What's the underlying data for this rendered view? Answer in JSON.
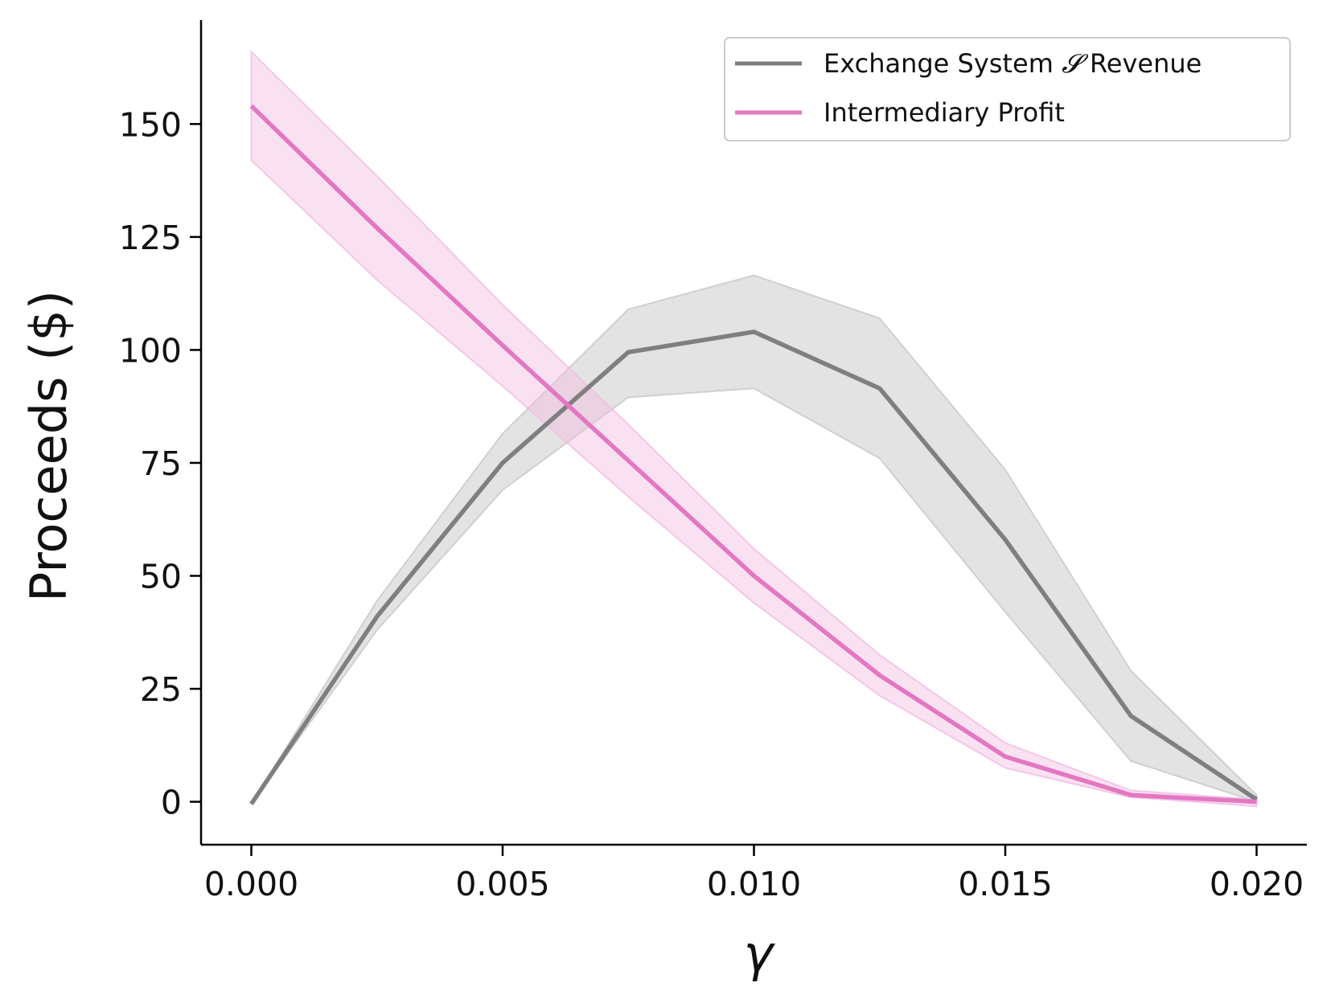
{
  "chart_data": {
    "type": "line",
    "xlabel": "γ",
    "ylabel": "Proceeds ($)",
    "xlim": [
      -0.001,
      0.021
    ],
    "ylim": [
      -9.5,
      173
    ],
    "x_ticks": [
      0.0,
      0.005,
      0.01,
      0.015,
      0.02
    ],
    "x_tick_labels": [
      "0.000",
      "0.005",
      "0.010",
      "0.015",
      "0.020"
    ],
    "y_ticks": [
      0,
      25,
      50,
      75,
      100,
      125,
      150
    ],
    "y_tick_labels": [
      "0",
      "25",
      "50",
      "75",
      "100",
      "125",
      "150"
    ],
    "x": [
      0.0,
      0.0025,
      0.005,
      0.0075,
      0.01,
      0.0125,
      0.015,
      0.0175,
      0.02
    ],
    "series": [
      {
        "name": "Exchange System 𝓢 Revenue",
        "color": "#7f7f7f",
        "band_color": "#c8c8c8",
        "values": [
          -0.5,
          41,
          75,
          99.5,
          104,
          91.5,
          58,
          19,
          0.5
        ],
        "lower": [
          -0.5,
          38,
          69,
          89.5,
          91.5,
          76,
          42,
          9,
          0
        ],
        "upper": [
          -0.5,
          44.5,
          81.5,
          109,
          116.5,
          107,
          73.5,
          29,
          1.5
        ]
      },
      {
        "name": "Intermediary Profit",
        "color": "#e377c2",
        "band_color": "#f1bde3",
        "values": [
          154,
          127,
          101,
          75.5,
          50,
          28,
          10,
          1.5,
          0
        ],
        "lower": [
          142,
          115.5,
          92,
          67.5,
          44,
          23.5,
          7.5,
          1,
          -1
        ],
        "upper": [
          166,
          138.5,
          110,
          83.5,
          56,
          32.5,
          13,
          2.5,
          0.5
        ]
      }
    ],
    "legend": {
      "position": "top-right",
      "entries": [
        {
          "prefix": "Exchange System ",
          "symbol": "𝓢",
          "suffix": " Revenue",
          "color": "#7f7f7f"
        },
        {
          "prefix": "Intermediary Profit",
          "symbol": "",
          "suffix": "",
          "color": "#e377c2"
        }
      ]
    },
    "grid": false,
    "spines": [
      "left",
      "bottom"
    ]
  }
}
